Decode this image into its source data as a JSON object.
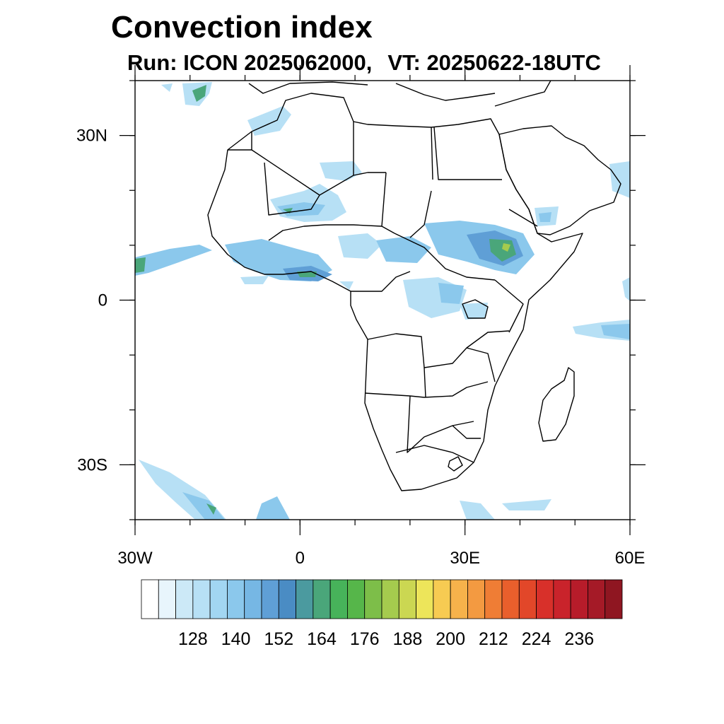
{
  "title": "Convection index",
  "subtitle": {
    "run": "Run: ICON 2025062000,",
    "vt": "VT: 20250622-18UTC"
  },
  "map": {
    "projection": "cylindrical-equidistant",
    "lon_range": [
      -30,
      60
    ],
    "lat_range": [
      -40,
      40
    ],
    "x_ticks": [
      {
        "lon": -30,
        "label": "30W"
      },
      {
        "lon": 0,
        "label": "0"
      },
      {
        "lon": 30,
        "label": "30E"
      },
      {
        "lon": 60,
        "label": "60E"
      }
    ],
    "y_ticks": [
      {
        "lat": 30,
        "label": "30N"
      },
      {
        "lat": 0,
        "label": "0"
      },
      {
        "lat": -30,
        "label": "30S"
      }
    ],
    "minor_tick_step_deg": 10
  },
  "colorbar": {
    "labels": [
      "128",
      "140",
      "152",
      "164",
      "176",
      "188",
      "200",
      "212",
      "224",
      "236"
    ],
    "colors": [
      "#ffffff",
      "#e8f5fc",
      "#cce9f7",
      "#b7e0f5",
      "#a2d6f2",
      "#8bc8ec",
      "#76b7e4",
      "#5f9fd6",
      "#4a8cc4",
      "#4b9a9f",
      "#4aa67a",
      "#47b35a",
      "#56b64a",
      "#7dbe49",
      "#a5cb4e",
      "#cbd752",
      "#ede55a",
      "#f7cb52",
      "#f6b24b",
      "#f39a41",
      "#ef7d35",
      "#e95f2c",
      "#e24729",
      "#d8302a",
      "#c9232b",
      "#b71c2a",
      "#a51a27",
      "#8f1621"
    ]
  },
  "field_colors": {
    "light": "#b7e0f5",
    "mid": "#8bc8ec",
    "blue": "#5f9fd6",
    "green": "#4aa67a",
    "yellowgreen": "#a5cb4e"
  }
}
